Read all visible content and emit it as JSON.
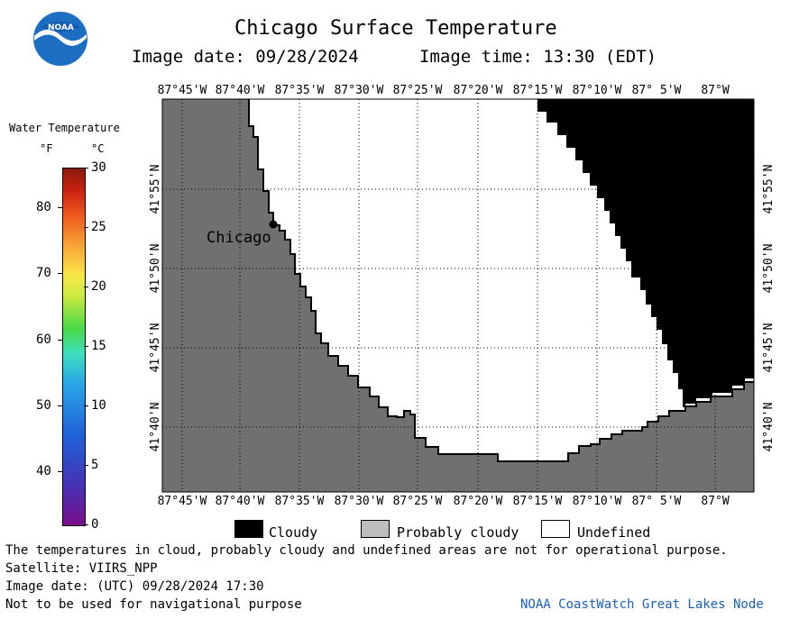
{
  "header": {
    "title": "Chicago Surface Temperature",
    "image_date": "Image date: 09/28/2024",
    "image_time": "Image time: 13:30 (EDT)"
  },
  "logo": {
    "text": "NOAA",
    "icon": "noaa-logo-icon"
  },
  "colorbar": {
    "title": "Water Temperature",
    "unit_f": "°F",
    "unit_c": "°C",
    "f_ticks": [
      "80",
      "70",
      "60",
      "50",
      "40"
    ],
    "c_ticks": [
      "30",
      "25",
      "20",
      "15",
      "10",
      "5",
      "0"
    ],
    "c_range": [
      0,
      30
    ]
  },
  "map": {
    "lon_labels": [
      "87°45'W",
      "87°40'W",
      "87°35'W",
      "87°30'W",
      "87°25'W",
      "87°20'W",
      "87°15'W",
      "87°10'W",
      "87° 5'W",
      "87°W"
    ],
    "lat_labels": [
      "41°55'N",
      "41°50'N",
      "41°45'N",
      "41°40'N"
    ],
    "city": "Chicago",
    "colors": {
      "land": "#707070",
      "cloudy": "#000000",
      "probably_cloudy": "#bdbdbd",
      "undefined": "#ffffff"
    }
  },
  "legend": {
    "cloudy": "Cloudy",
    "probably_cloudy": "Probably cloudy",
    "undefined": "Undefined"
  },
  "footer": {
    "disclaimer": "The temperatures in cloud, probably cloudy and undefined areas are not for operational purpose.",
    "satellite": "Satellite: VIIRS_NPP",
    "utc_date": "Image date: (UTC) 09/28/2024  17:30",
    "nav_warning": "Not to be used for navigational purpose",
    "credit": "NOAA CoastWatch Great Lakes Node"
  }
}
